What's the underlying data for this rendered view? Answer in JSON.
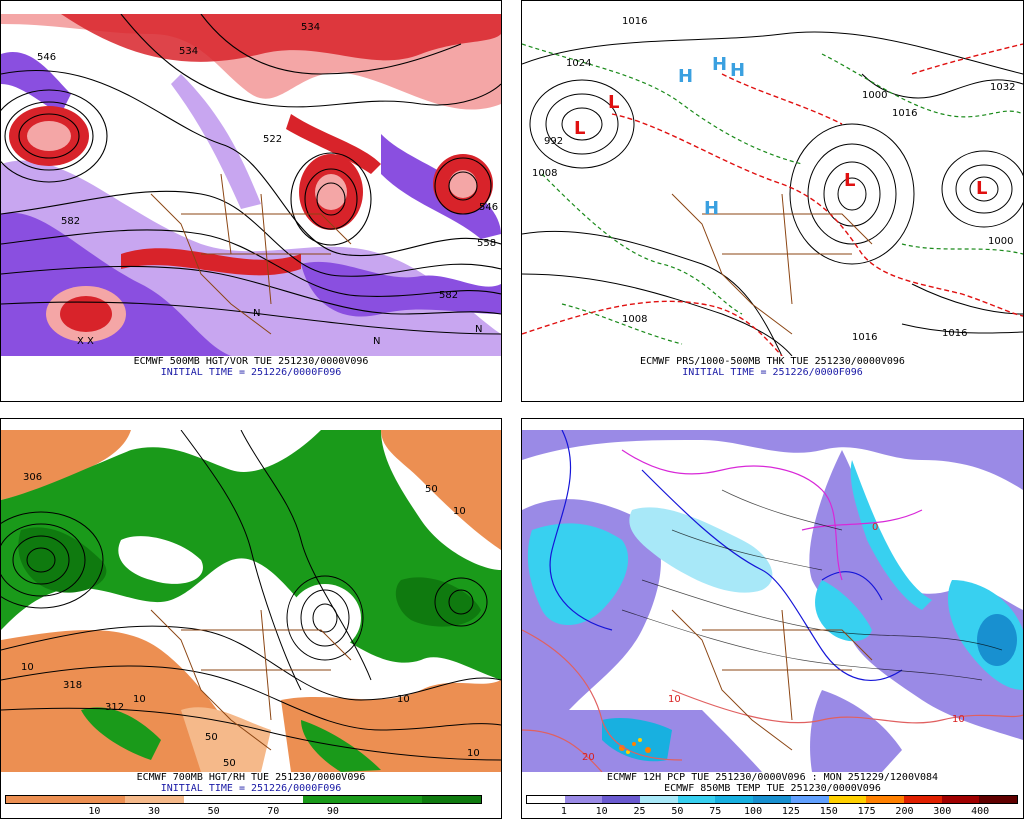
{
  "panels": {
    "tl": {
      "caption_line1": "ECMWF 500MB HGT/VOR TUE 251230/0000V096",
      "caption_line2": "INITIAL TIME = 251226/0000F096",
      "contour_labels": [
        "546",
        "534",
        "522",
        "582",
        "558",
        "546",
        "582",
        "534"
      ],
      "symbols": [
        "X",
        "X",
        "N",
        "N",
        "N"
      ],
      "colors": {
        "vort_pos": "#d8232a",
        "vort_pos_light": "#f4a6a6",
        "vort_neg": "#8a4fe0",
        "vort_neg_light": "#c8a6f0",
        "border": "#8b4513"
      }
    },
    "tr": {
      "caption_line1": "ECMWF PRS/1000-500MB THK TUE 251230/0000V096",
      "caption_line2": "INITIAL TIME = 251226/0000F096",
      "pressure_labels": [
        "1016",
        "1024",
        "1032",
        "1008",
        "1000",
        "1016",
        "1008",
        "1000",
        "1016",
        "1016",
        "992"
      ],
      "centers": [
        {
          "label": "L",
          "kind": "low"
        },
        {
          "label": "L",
          "kind": "low"
        },
        {
          "label": "L",
          "kind": "low"
        },
        {
          "label": "L",
          "kind": "low"
        },
        {
          "label": "H",
          "kind": "high"
        },
        {
          "label": "H",
          "kind": "high"
        },
        {
          "label": "H",
          "kind": "high"
        },
        {
          "label": "H",
          "kind": "high"
        }
      ],
      "colors": {
        "low": "#e01010",
        "high": "#3aa0e0",
        "thickness_warm": "#e01010",
        "thickness_cold": "#1a8a1a",
        "isobar": "#000000"
      }
    },
    "bl": {
      "caption_line1": "ECMWF 700MB HGT/RH TUE 251230/0000V096",
      "caption_line2": "INITIAL TIME = 251226/0000F096",
      "contour_labels": [
        "306",
        "10",
        "50",
        "10",
        "318",
        "312",
        "10",
        "10",
        "50",
        "50",
        "10"
      ],
      "colorbar": {
        "colors": [
          "#ec8f52",
          "#ec8f52",
          "#f5b98a",
          "#ffffff",
          "#ffffff",
          "#1a9a1a",
          "#1a9a1a",
          "#0f7a0f"
        ],
        "ticks": [
          "10",
          "30",
          "50",
          "70",
          "90"
        ]
      }
    },
    "br": {
      "caption_line1": "ECMWF 12H PCP TUE 251230/0000V096 : MON 251229/1200V084",
      "caption_line2": "ECMWF 850MB TEMP TUE 251230/0000V096",
      "colorbar": {
        "colors": [
          "#ffffff",
          "#9a8ae6",
          "#6a5ad0",
          "#a8e8f8",
          "#38d0f0",
          "#18b0e0",
          "#1890d0",
          "#60a0ff",
          "#ffd000",
          "#ff8000",
          "#e02000",
          "#a00000",
          "#600000"
        ],
        "ticks": [
          "1",
          "10",
          "25",
          "50",
          "75",
          "100",
          "125",
          "150",
          "175",
          "200",
          "300",
          "400"
        ]
      },
      "temperature_labels": [
        "0",
        "10",
        "10",
        "20"
      ]
    }
  }
}
